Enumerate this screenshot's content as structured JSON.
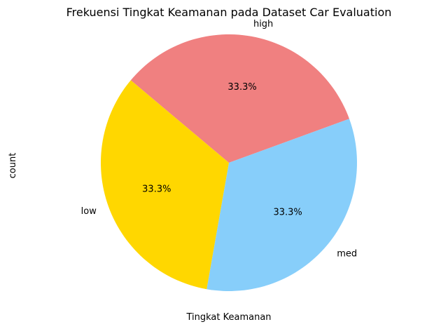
{
  "chart_data": {
    "type": "pie",
    "title": "Frekuensi Tingkat Keamanan pada Dataset Car Evaluation",
    "xlabel": "Tingkat Keamanan",
    "ylabel": "count",
    "categories": [
      "high",
      "med",
      "low"
    ],
    "values": [
      33.3,
      33.3,
      33.3
    ],
    "percent_labels": [
      "33.3%",
      "33.3%",
      "33.3%"
    ],
    "colors": [
      "#F08080",
      "#87CEFA",
      "#FFD700"
    ],
    "start_angle_deg": 140,
    "legend": "none"
  }
}
